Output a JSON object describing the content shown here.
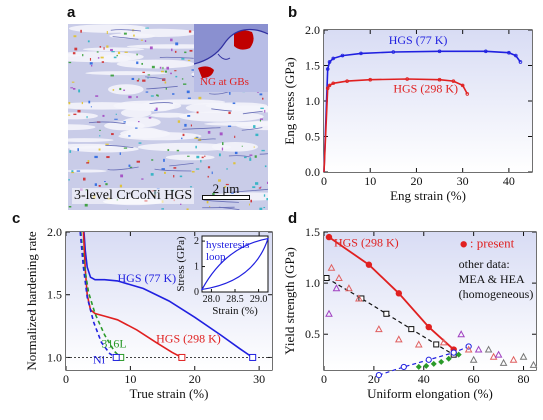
{
  "panel_labels": {
    "a": "a",
    "b": "b",
    "c": "c",
    "d": "d"
  },
  "panel_a": {
    "caption": "3-level CrCoNi HGS",
    "scalebar": "2 μm",
    "inset_label": "NG at GBs"
  },
  "colors": {
    "blue": "#2020e0",
    "red": "#e02020",
    "dark": "#111111",
    "green": "#2a9a2a"
  },
  "chart_data": [
    {
      "id": "b",
      "type": "line",
      "xlabel": "Eng strain (%)",
      "ylabel": "Eng stress (GPa)",
      "xlim": [
        0,
        45
      ],
      "ylim": [
        0,
        2.0
      ],
      "xticks": [
        0,
        10,
        20,
        30,
        40
      ],
      "yticks": [
        0.0,
        0.5,
        1.0,
        1.5,
        2.0
      ],
      "series": [
        {
          "name": "HGS (77 K)",
          "color": "#2020e0",
          "x": [
            0,
            0.8,
            1.2,
            2,
            4,
            8,
            15,
            25,
            35,
            40,
            41.5,
            42.5
          ],
          "y": [
            0,
            1.45,
            1.55,
            1.6,
            1.64,
            1.67,
            1.69,
            1.7,
            1.7,
            1.68,
            1.64,
            1.55
          ]
        },
        {
          "name": "HGS (298 K)",
          "color": "#e02020",
          "x": [
            0,
            0.8,
            1.2,
            2,
            5,
            10,
            18,
            25,
            28,
            30,
            31
          ],
          "y": [
            0,
            1.18,
            1.22,
            1.25,
            1.28,
            1.3,
            1.31,
            1.3,
            1.28,
            1.22,
            1.1
          ]
        }
      ]
    },
    {
      "id": "c",
      "type": "line",
      "xlabel": "True strain (%)",
      "ylabel": "Normalized hardening rate",
      "xlim": [
        0,
        32
      ],
      "ylim": [
        0.9,
        2.0
      ],
      "xticks": [
        0,
        10,
        20,
        30
      ],
      "yticks": [
        1.0,
        1.5,
        2.0
      ],
      "reference_line": 1.0,
      "series": [
        {
          "name": "HGS (77 K)",
          "color": "#2020e0",
          "x": [
            2.8,
            3.0,
            3.3,
            3.8,
            4.5,
            6,
            8,
            12,
            16,
            20,
            24,
            27,
            29
          ],
          "y": [
            2.0,
            1.85,
            1.72,
            1.64,
            1.62,
            1.62,
            1.61,
            1.55,
            1.45,
            1.32,
            1.18,
            1.07,
            1.0
          ]
        },
        {
          "name": "HGS (298 K)",
          "color": "#e02020",
          "x": [
            2.7,
            3.0,
            3.3,
            3.8,
            4.5,
            6,
            8,
            11,
            14,
            16.5,
            18
          ],
          "y": [
            2.0,
            1.7,
            1.5,
            1.38,
            1.35,
            1.33,
            1.3,
            1.22,
            1.12,
            1.04,
            1.0
          ]
        },
        {
          "name": "316L",
          "color": "#2a9a2a",
          "dashed": true,
          "x": [
            2.3,
            2.8,
            3.5,
            4.5,
            6,
            7.5,
            8.5
          ],
          "y": [
            2.0,
            1.75,
            1.52,
            1.35,
            1.18,
            1.05,
            1.0
          ]
        },
        {
          "name": "Ni",
          "color": "#2020e0",
          "dashed": true,
          "x": [
            2.2,
            2.7,
            3.3,
            4.3,
            5.5,
            6.8,
            7.8
          ],
          "y": [
            2.0,
            1.72,
            1.48,
            1.28,
            1.12,
            1.03,
            1.0
          ]
        }
      ],
      "inset": {
        "label": "hysteresis loop",
        "xlabel": "Strain (%)",
        "ylabel": "Stress (GPa)",
        "xlim": [
          27.8,
          29.2
        ],
        "ylim": [
          0,
          2.2
        ],
        "xticks": [
          28.0,
          28.5,
          29.0
        ],
        "yticks": [
          0,
          1,
          2
        ]
      }
    },
    {
      "id": "d",
      "type": "scatter",
      "xlabel": "Uniform elongation (%)",
      "ylabel": "Yield strength (GPa)",
      "xlim": [
        0,
        85
      ],
      "ylim": [
        0.15,
        1.5
      ],
      "xticks": [
        0,
        20,
        40,
        60,
        80
      ],
      "yticks": [
        0.5,
        1.0,
        1.5
      ],
      "legend_present": "present",
      "legend_other": [
        "other data:",
        "MEA & HEA",
        "(homogeneous)"
      ],
      "annotation": "HGS (298 K)",
      "series": [
        {
          "name": "present",
          "color": "#e02020",
          "x": [
            2,
            18,
            30,
            42,
            52
          ],
          "y": [
            1.45,
            1.18,
            0.9,
            0.57,
            0.35
          ]
        },
        {
          "name": "",
          "color": "#111111",
          "dashed": true,
          "marker": "open-square",
          "x": [
            1,
            15,
            25,
            35,
            45,
            52
          ],
          "y": [
            1.05,
            0.85,
            0.7,
            0.55,
            0.4,
            0.3
          ]
        },
        {
          "name": "",
          "color": "#2020e0",
          "dashed": true,
          "marker": "open-circle",
          "x": [
            22,
            32,
            42,
            52,
            58
          ],
          "y": [
            0.1,
            0.18,
            0.25,
            0.32,
            0.38
          ]
        },
        {
          "name": "",
          "color": "#2a9a2a",
          "marker": "diamond",
          "x": [
            38,
            41,
            44,
            47,
            50,
            54
          ],
          "y": [
            0.18,
            0.19,
            0.21,
            0.23,
            0.26,
            0.3
          ]
        },
        {
          "name": "",
          "color": "#e06060",
          "marker": "open-triangle",
          "x": [
            3,
            6,
            10,
            14,
            22,
            30,
            38,
            48,
            58,
            68,
            76
          ],
          "y": [
            1.15,
            1.05,
            0.95,
            0.85,
            0.55,
            0.45,
            0.4,
            0.42,
            0.35,
            0.28,
            0.25
          ]
        },
        {
          "name": "",
          "color": "#a040c0",
          "marker": "open-triangle",
          "x": [
            2,
            5,
            55,
            62,
            70
          ],
          "y": [
            0.7,
            0.95,
            0.5,
            0.35,
            0.3
          ]
        },
        {
          "name": "",
          "color": "#777777",
          "marker": "open-triangle",
          "x": [
            60,
            66,
            72,
            80,
            84
          ],
          "y": [
            0.25,
            0.35,
            0.22,
            0.28,
            0.2
          ]
        }
      ]
    }
  ]
}
